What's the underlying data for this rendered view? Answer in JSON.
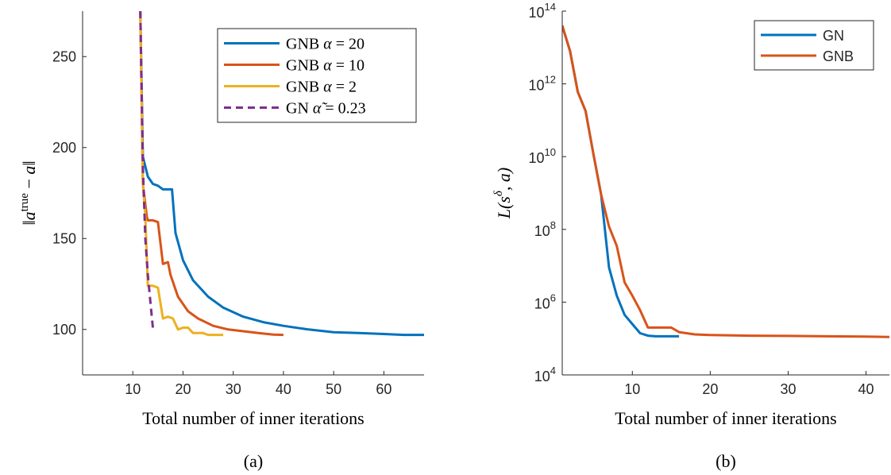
{
  "chart_data": [
    {
      "type": "line",
      "panel_label": "(a)",
      "xlabel": "Total number of inner iterations",
      "ylabel": "‖a^true − a‖",
      "xlim": [
        0,
        68
      ],
      "ylim": [
        75,
        275
      ],
      "xticks": [
        10,
        20,
        30,
        40,
        50,
        60
      ],
      "yticks": [
        100,
        150,
        200,
        250
      ],
      "legend_position": "top-right",
      "series": [
        {
          "name": "GNB α = 20",
          "color": "#0072BD",
          "dash": "solid",
          "x": [
            11.5,
            12,
            13,
            14,
            15,
            16,
            17,
            17.8,
            18.5,
            20,
            22,
            25,
            28,
            32,
            36,
            40,
            45,
            50,
            55,
            60,
            64,
            68
          ],
          "y": [
            275,
            195,
            184,
            180,
            179,
            177,
            177,
            177,
            153,
            138,
            127,
            118,
            112,
            107,
            104,
            102,
            100,
            98.5,
            98,
            97.5,
            97,
            97
          ]
        },
        {
          "name": "GNB α = 10",
          "color": "#D95319",
          "dash": "solid",
          "x": [
            11.5,
            12,
            12.8,
            13,
            14,
            15,
            16,
            17,
            17.5,
            19,
            21,
            23,
            26,
            29,
            32,
            35,
            38,
            40
          ],
          "y": [
            275,
            180,
            162,
            160,
            160,
            159,
            136,
            137,
            130,
            118,
            110,
            106,
            102,
            100,
            99,
            98,
            97.2,
            97
          ]
        },
        {
          "name": "GNB α = 2",
          "color": "#EDB120",
          "dash": "solid",
          "x": [
            11.5,
            12,
            12.5,
            13,
            14,
            15,
            16,
            17,
            18,
            19,
            20,
            21,
            22,
            23,
            24,
            25,
            26,
            27,
            28
          ],
          "y": [
            275,
            180,
            162,
            124,
            124,
            123,
            106,
            107,
            106,
            100,
            101,
            101,
            98,
            98,
            98,
            97,
            97,
            97,
            97
          ]
        },
        {
          "name": "GN α̃ = 0.23",
          "color": "#7E2F8E",
          "dash": "dashed",
          "x": [
            11.5,
            12,
            12.5,
            13,
            13.5,
            14
          ],
          "y": [
            275,
            190,
            150,
            130,
            115,
            101
          ]
        }
      ]
    },
    {
      "type": "line",
      "panel_label": "(b)",
      "xlabel": "Total number of inner iterations",
      "ylabel": "L(s^δ, a)",
      "xscale": "linear",
      "yscale": "log",
      "xlim": [
        1,
        43
      ],
      "ylim": [
        10000,
        100000000000000
      ],
      "xticks": [
        10,
        20,
        30,
        40
      ],
      "yticks": [
        10000,
        1000000,
        100000000,
        10000000000,
        1000000000000,
        100000000000000
      ],
      "legend_position": "top-right",
      "series": [
        {
          "name": "GN",
          "color": "#0072BD",
          "dash": "solid",
          "x": [
            1,
            2,
            3,
            4,
            5,
            6,
            7,
            8,
            9,
            10,
            11,
            12,
            13,
            14,
            15,
            16
          ],
          "y": [
            40000000000000,
            8000000000000,
            600000000000,
            180000000000,
            12000000000,
            900000000,
            9000000,
            1500000,
            450000,
            250000,
            140000,
            120000,
            115000,
            115000,
            115000,
            115000
          ]
        },
        {
          "name": "GNB",
          "color": "#D95319",
          "dash": "solid",
          "x": [
            1,
            2,
            3,
            4,
            5,
            6,
            7,
            8,
            9,
            10,
            11,
            12,
            13,
            14,
            15,
            16,
            18,
            20,
            25,
            30,
            35,
            40,
            43
          ],
          "y": [
            40000000000000,
            8000000000000,
            600000000000,
            180000000000,
            12000000000,
            900000000,
            120000000,
            35000000,
            3500000,
            1500000,
            600000,
            200000,
            200000,
            200000,
            200000,
            150000,
            130000,
            125000,
            120000,
            118000,
            115000,
            113000,
            110000
          ]
        }
      ]
    }
  ]
}
